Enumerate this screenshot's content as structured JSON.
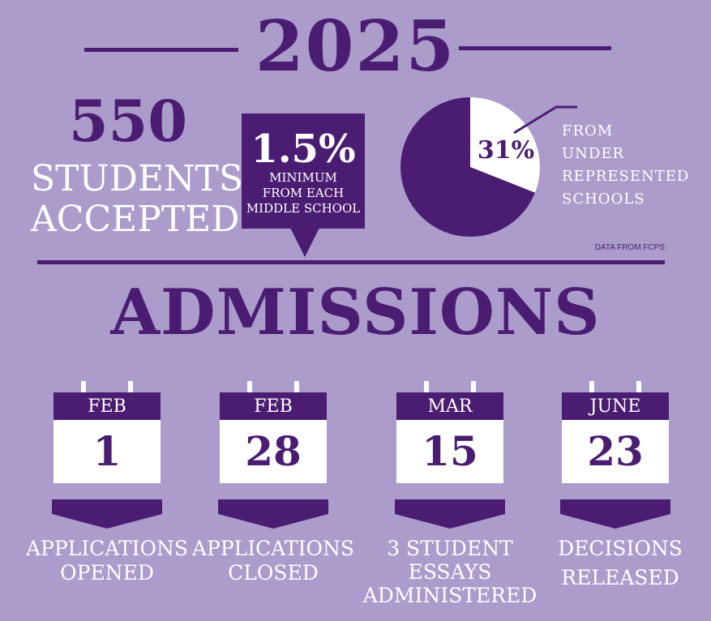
{
  "header": {
    "year": "2025"
  },
  "stats": {
    "accepted_number": "550",
    "accepted_line1": "STUDENTS",
    "accepted_line2": "ACCEPTED",
    "minimum_pct": "1.5%",
    "minimum_line1": "MINIMUM",
    "minimum_line2": "FROM EACH",
    "minimum_line3": "MIDDLE SCHOOL",
    "pie_pct_label": "31%",
    "pie_fraction": 0.31,
    "from_line1": "FROM",
    "from_line2": "UNDER",
    "from_line3": "REPRESENTED",
    "from_line4": "SCHOOLS",
    "credit": "DATA FROM FCPS"
  },
  "section": {
    "title": "ADMISSIONS"
  },
  "timeline": [
    {
      "month": "FEB",
      "day": "1",
      "caption_line1": "APPLICATIONS",
      "caption_line2": "OPENED",
      "caption_line3": ""
    },
    {
      "month": "FEB",
      "day": "28",
      "caption_line1": "APPLICATIONS",
      "caption_line2": "CLOSED",
      "caption_line3": ""
    },
    {
      "month": "MAR",
      "day": "15",
      "caption_line1": "3 STUDENT",
      "caption_line2": "ESSAYS",
      "caption_line3": "ADMINISTERED"
    },
    {
      "month": "JUNE",
      "day": "23",
      "caption_line1": "DECISIONS",
      "caption_line2": "RELEASED",
      "caption_line3": ""
    }
  ],
  "colors": {
    "background": "#ab9ccb",
    "primary": "#4b1d72",
    "white": "#ffffff"
  }
}
